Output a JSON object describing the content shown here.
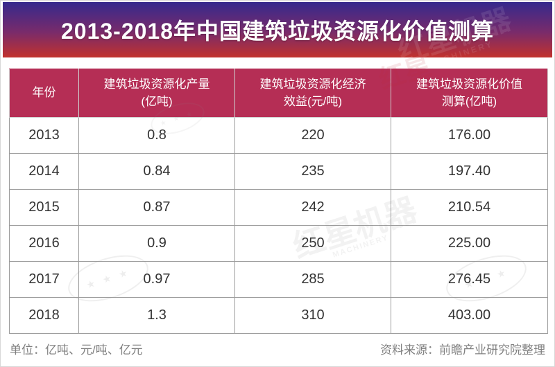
{
  "banner": {
    "title": "2013-2018年中国建筑垃圾资源化价值测算"
  },
  "table": {
    "columns": [
      "年份",
      "建筑垃圾资源化产量\n(亿吨)",
      "建筑垃圾资源化经济\n效益(元/吨)",
      "建筑垃圾资源化价值\n测算(亿吨)"
    ],
    "rows": [
      [
        "2013",
        "0.8",
        "220",
        "176.00"
      ],
      [
        "2014",
        "0.84",
        "235",
        "197.40"
      ],
      [
        "2015",
        "0.87",
        "242",
        "210.54"
      ],
      [
        "2016",
        "0.9",
        "250",
        "225.00"
      ],
      [
        "2017",
        "0.97",
        "285",
        "276.45"
      ],
      [
        "2018",
        "1.3",
        "310",
        "403.00"
      ]
    ]
  },
  "footer": {
    "units": "单位：亿吨、元/吨、亿元",
    "source": "资料来源：前瞻产业研究院整理"
  },
  "watermark": {
    "brand": "红星机器",
    "brand_en": "MACHINERY",
    "brand_short": "红星",
    "stars": "★ ★ ★"
  },
  "colors": {
    "banner_gradient_top": "#35298d",
    "banner_gradient_bottom": "#c2322d",
    "header_background": "#b52e55",
    "header_text": "#ffffff",
    "body_text": "#333333",
    "border_gray": "#9b9b9b",
    "footer_text": "#808080"
  },
  "chart_data": {
    "type": "table",
    "title": "2013-2018年中国建筑垃圾资源化价值测算",
    "categories": [
      "2013",
      "2014",
      "2015",
      "2016",
      "2017",
      "2018"
    ],
    "series": [
      {
        "name": "建筑垃圾资源化产量(亿吨)",
        "values": [
          0.8,
          0.84,
          0.87,
          0.9,
          0.97,
          1.3
        ]
      },
      {
        "name": "建筑垃圾资源化经济效益(元/吨)",
        "values": [
          220,
          235,
          242,
          250,
          285,
          310
        ]
      },
      {
        "name": "建筑垃圾资源化价值测算(亿吨)",
        "values": [
          176.0,
          197.4,
          210.54,
          225.0,
          276.45,
          403.0
        ]
      }
    ],
    "source_note": "资料来源：前瞻产业研究院整理",
    "units_note": "单位：亿吨、元/吨、亿元"
  }
}
